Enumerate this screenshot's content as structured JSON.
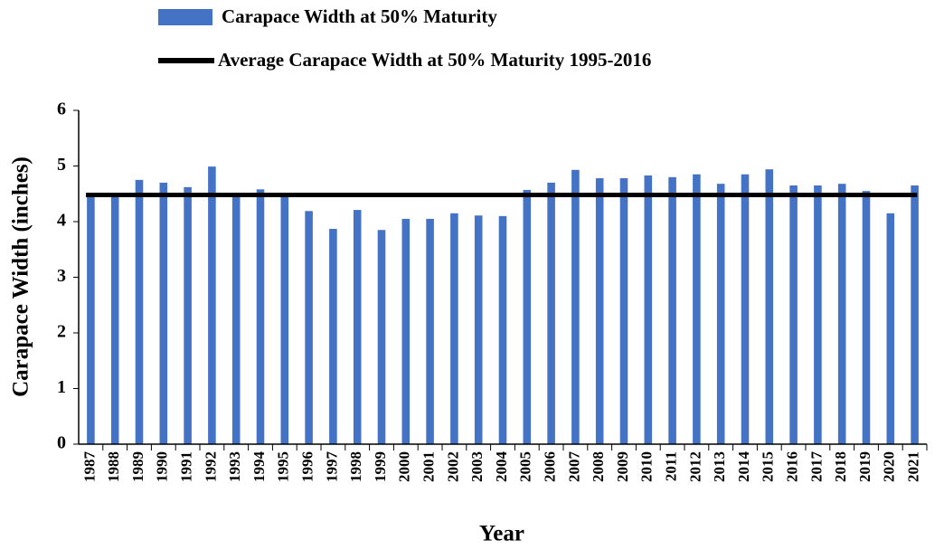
{
  "chart_data": {
    "type": "bar",
    "x_label": "Year",
    "y_label": "Carapace Width (inches)",
    "categories": [
      "1987",
      "1988",
      "1989",
      "1990",
      "1991",
      "1992",
      "1993",
      "1994",
      "1995",
      "1996",
      "1997",
      "1998",
      "1999",
      "2000",
      "2001",
      "2002",
      "2003",
      "2004",
      "2005",
      "2006",
      "2007",
      "2008",
      "2009",
      "2010",
      "2011",
      "2012",
      "2013",
      "2014",
      "2015",
      "2016",
      "2017",
      "2018",
      "2019",
      "2020",
      "2021"
    ],
    "series": [
      {
        "name": "Carapace Width at 50% Maturity",
        "color": "#4472c4",
        "values": [
          4.45,
          4.45,
          4.75,
          4.7,
          4.62,
          4.99,
          4.45,
          4.58,
          4.45,
          4.19,
          3.87,
          4.21,
          3.85,
          4.05,
          4.05,
          4.15,
          4.11,
          4.1,
          4.57,
          4.7,
          4.93,
          4.78,
          4.78,
          4.83,
          4.8,
          4.85,
          4.68,
          4.85,
          4.94,
          4.65,
          4.65,
          4.68,
          4.55,
          4.15,
          4.65
        ]
      }
    ],
    "reference_line": {
      "name": "Average Carapace Width at 50% Maturity 1995-2016",
      "color": "#000000",
      "value": 4.48
    },
    "ylim": [
      0,
      6
    ],
    "yticks": [
      0,
      1,
      2,
      3,
      4,
      5,
      6
    ]
  }
}
